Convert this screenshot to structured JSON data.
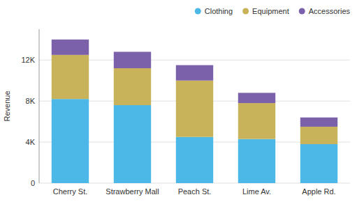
{
  "chart_data": {
    "type": "bar",
    "stacked": true,
    "categories": [
      "Cherry St.",
      "Strawberry Mall",
      "Peach St.",
      "Lime Av.",
      "Apple Rd."
    ],
    "series": [
      {
        "name": "Clothing",
        "color": "#4cb8e8",
        "values": [
          8200,
          7600,
          4500,
          4300,
          3800
        ]
      },
      {
        "name": "Equipment",
        "color": "#c8b35a",
        "values": [
          4300,
          3600,
          5500,
          3500,
          1700
        ]
      },
      {
        "name": "Accessories",
        "color": "#7b60aa",
        "values": [
          1500,
          1600,
          1500,
          1000,
          900
        ]
      }
    ],
    "ylabel": "Revenue",
    "ylim": [
      0,
      15000
    ],
    "yticks": [
      0,
      {
        "value": 4000,
        "label": "4K"
      },
      {
        "value": 8000,
        "label": "8K"
      },
      {
        "value": 12000,
        "label": "12K"
      }
    ],
    "grid": true,
    "legend": "upper right"
  }
}
